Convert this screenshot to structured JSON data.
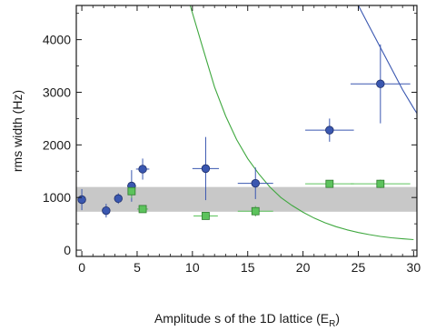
{
  "chart_data": {
    "type": "scatter",
    "title": "",
    "xlabel_main": "Amplitude s of the 1D lattice (E",
    "xlabel_sub": "R",
    "xlabel_close": ")",
    "ylabel": "rms width (Hz)",
    "xlim": [
      -0.5,
      30.3
    ],
    "ylim": [
      -120,
      4650
    ],
    "xticks": [
      0,
      5,
      10,
      15,
      20,
      25,
      30
    ],
    "yticks": [
      0,
      1000,
      2000,
      3000,
      4000
    ],
    "grid": false,
    "band": {
      "y0": 730,
      "y1": 1200,
      "color": "#c8c8c8"
    },
    "series": [
      {
        "marker": "circle",
        "color": "#3a57b0",
        "points": [
          {
            "x": 0.0,
            "y": 960,
            "xerr": 0.3,
            "yerr": 200
          },
          {
            "x": 2.2,
            "y": 750,
            "xerr": 0.3,
            "yerr": 130
          },
          {
            "x": 3.3,
            "y": 980,
            "xerr": 0.3,
            "yerr": 100
          },
          {
            "x": 4.5,
            "y": 1220,
            "xerr": 0.4,
            "yerr": 300
          },
          {
            "x": 5.5,
            "y": 1540,
            "xerr": 0.6,
            "yerr": 200
          },
          {
            "x": 11.2,
            "y": 1550,
            "xerr": 1.2,
            "yerr": 600
          },
          {
            "x": 15.7,
            "y": 1270,
            "xerr": 1.6,
            "yerr": 300
          },
          {
            "x": 22.4,
            "y": 2280,
            "xerr": 2.2,
            "yerr": 220
          },
          {
            "x": 27.0,
            "y": 3160,
            "xerr": 2.7,
            "yerr": 750
          }
        ]
      },
      {
        "marker": "square",
        "color": "#5cc35c",
        "points": [
          {
            "x": 4.5,
            "y": 1120,
            "xerr": 0.3,
            "yerr": 130
          },
          {
            "x": 5.5,
            "y": 780,
            "xerr": 0.5,
            "yerr": 70
          },
          {
            "x": 11.2,
            "y": 650,
            "xerr": 1.1,
            "yerr": 50
          },
          {
            "x": 15.7,
            "y": 740,
            "xerr": 1.6,
            "yerr": 100
          },
          {
            "x": 22.4,
            "y": 1260,
            "xerr": 2.2,
            "yerr": 60
          },
          {
            "x": 27.0,
            "y": 1260,
            "xerr": 2.7,
            "yerr": 80
          }
        ]
      }
    ],
    "curves": [
      {
        "color": "#3fa83f",
        "points": [
          [
            9.8,
            4650
          ],
          [
            11,
            3800
          ],
          [
            12,
            3100
          ],
          [
            13,
            2550
          ],
          [
            14,
            2100
          ],
          [
            15,
            1740
          ],
          [
            16,
            1450
          ],
          [
            17,
            1200
          ],
          [
            18,
            1000
          ],
          [
            19,
            850
          ],
          [
            20,
            720
          ],
          [
            21,
            610
          ],
          [
            22,
            520
          ],
          [
            23,
            445
          ],
          [
            24,
            385
          ],
          [
            25,
            335
          ],
          [
            26,
            295
          ],
          [
            27,
            260
          ],
          [
            28,
            235
          ],
          [
            29,
            215
          ],
          [
            30,
            200
          ]
        ]
      },
      {
        "color": "#3a57b0",
        "points": [
          [
            25.0,
            4650
          ],
          [
            26,
            4250
          ],
          [
            27,
            3850
          ],
          [
            28,
            3450
          ],
          [
            29,
            3050
          ],
          [
            30,
            2700
          ],
          [
            30.3,
            2600
          ]
        ]
      }
    ]
  }
}
